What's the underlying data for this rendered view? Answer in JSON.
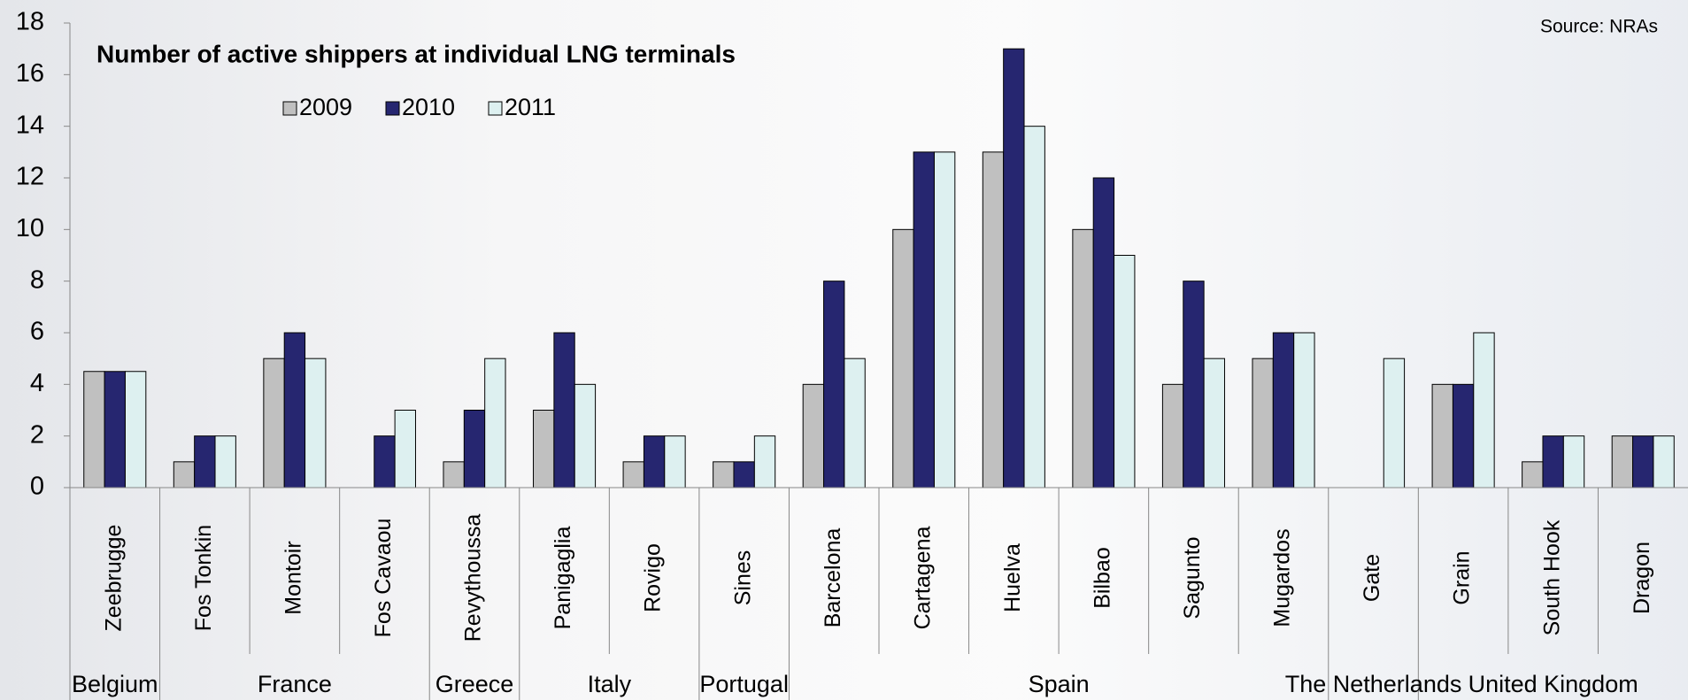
{
  "chart_data": {
    "type": "bar",
    "title": "Number of active shippers at individual LNG terminals",
    "source": "Source: NRAs",
    "categories": [
      "Zeebrugge",
      "Fos Tonkin",
      "Montoir",
      "Fos Cavaou",
      "Revythoussa",
      "Panigaglia",
      "Rovigo",
      "Sines",
      "Barcelona",
      "Cartagena",
      "Huelva",
      "Bilbao",
      "Sagunto",
      "Mugardos",
      "Gate",
      "Grain",
      "South Hook",
      "Dragon"
    ],
    "category_groups": [
      "Belgium",
      "France",
      "France",
      "France",
      "Greece",
      "Italy",
      "Italy",
      "Portugal",
      "Spain",
      "Spain",
      "Spain",
      "Spain",
      "Spain",
      "Spain",
      "The Netherlands",
      "United Kingdom",
      "United Kingdom",
      "United Kingdom"
    ],
    "series": [
      {
        "name": "2009",
        "color": "#c0c0c0",
        "values": [
          4.5,
          1,
          5,
          null,
          1,
          3,
          1,
          1,
          4,
          10,
          13,
          10,
          4,
          5,
          null,
          4,
          1,
          2
        ]
      },
      {
        "name": "2010",
        "color": "#262670",
        "values": [
          4.5,
          2,
          6,
          2,
          3,
          6,
          2,
          1,
          8,
          13,
          17,
          12,
          8,
          6,
          null,
          4,
          2,
          2
        ]
      },
      {
        "name": "2011",
        "color": "#ddf0f0",
        "values": [
          4.5,
          2,
          5,
          3,
          5,
          4,
          2,
          2,
          5,
          13,
          14,
          9,
          5,
          6,
          5,
          6,
          2,
          2
        ]
      }
    ],
    "ylim": [
      0,
      18
    ],
    "yticks": [
      0,
      2,
      4,
      6,
      8,
      10,
      12,
      14,
      16,
      18
    ],
    "legend": "top-left"
  }
}
